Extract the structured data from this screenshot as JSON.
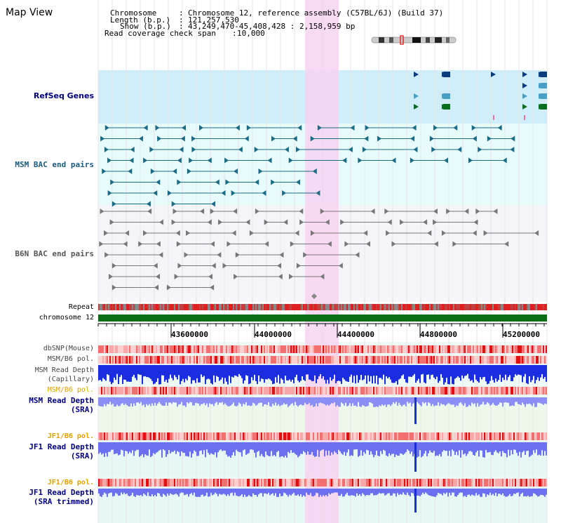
{
  "title": "Map View",
  "info": {
    "chromosome_key": "Chromosome",
    "chromosome_value": "Chromosome 12, reference assembly (C57BL/6J) (Build 37)",
    "length_key": "Length (b.p.)",
    "length_value": "121,257,530",
    "show_key": "Show (b.p.)",
    "show_value": "43,249,470-45,408,428 : 2,158,959 bp",
    "coverage_key": "Read coverage check span",
    "coverage_value": "10,000"
  },
  "tracks": {
    "refseq": "RefSeq Genes",
    "msm_bac": "MSM BAC end pairs",
    "b6n_bac": "B6N BAC end pairs",
    "repeat": "Repeat",
    "chromosome": "chromosome 12",
    "dbsnp": "dbSNP(Mouse)",
    "msm_b6_pol_1": "MSM/B6 pol.",
    "msm_read_depth_cap_1": "MSM Read Depth",
    "msm_read_depth_cap_2": "(Capillary)",
    "msm_b6_pol_2": "MSM/B6 pol.",
    "msm_read_depth_sra_1": "MSM Read Depth",
    "msm_read_depth_sra_2": "(SRA)",
    "jf1_b6_pol_1": "JF1/B6 pol.",
    "jf1_read_depth_sra_1": "JF1 Read Depth",
    "jf1_read_depth_sra_2": "(SRA)",
    "jf1_b6_pol_2": "JF1/B6 pol.",
    "jf1_read_depth_trim_1": "JF1 Read Depth",
    "jf1_read_depth_trim_2": "(SRA trimmed)"
  },
  "axis_ticks": [
    "43600000",
    "44000000",
    "44400000",
    "44800000",
    "45200000"
  ],
  "colors": {
    "refseq_bg": "#cfeef9",
    "msm_bac_bg": "#e8fbfb",
    "b6n_bac_bg": "#f4f4f9",
    "highlight": "#f7d4f1",
    "msm_line": "#1a6b85",
    "b6n_line": "#777777",
    "depth_blue": "#1a2ee0",
    "sra_blue": "#8a8ef5",
    "label_navy": "#000080",
    "label_teal": "#1a5a80",
    "label_orange": "#e0a000",
    "chrom_green": "#0b6e14"
  }
}
